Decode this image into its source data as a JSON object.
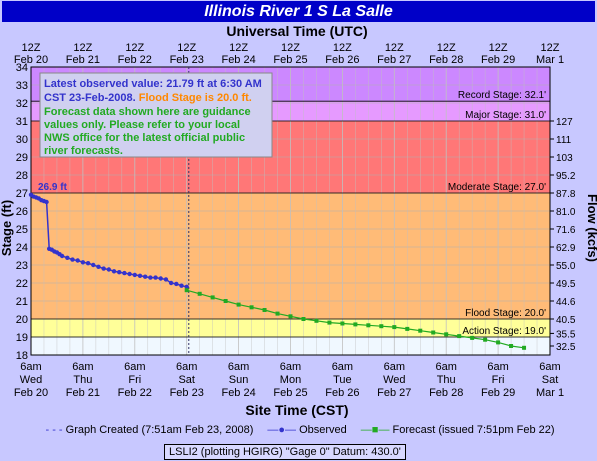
{
  "title": "Illinois River 1 S La Salle",
  "top_axis_title": "Universal Time (UTC)",
  "bottom_axis_title": "Site Time (CST)",
  "left_axis_title": "Stage (ft)",
  "right_axis_title": "Flow (kcfs)",
  "top_ticks": [
    {
      "time": "12Z",
      "date": "Feb 20"
    },
    {
      "time": "12Z",
      "date": "Feb 21"
    },
    {
      "time": "12Z",
      "date": "Feb 22"
    },
    {
      "time": "12Z",
      "date": "Feb 23"
    },
    {
      "time": "12Z",
      "date": "Feb 24"
    },
    {
      "time": "12Z",
      "date": "Feb 25"
    },
    {
      "time": "12Z",
      "date": "Feb 26"
    },
    {
      "time": "12Z",
      "date": "Feb 27"
    },
    {
      "time": "12Z",
      "date": "Feb 28"
    },
    {
      "time": "12Z",
      "date": "Feb 29"
    },
    {
      "time": "12Z",
      "date": "Mar 1"
    }
  ],
  "bottom_ticks": [
    {
      "time": "6am",
      "day": "Wed",
      "date": "Feb 20"
    },
    {
      "time": "6am",
      "day": "Thu",
      "date": "Feb 21"
    },
    {
      "time": "6am",
      "day": "Fri",
      "date": "Feb 22"
    },
    {
      "time": "6am",
      "day": "Sat",
      "date": "Feb 23"
    },
    {
      "time": "6am",
      "day": "Sun",
      "date": "Feb 24"
    },
    {
      "time": "6am",
      "day": "Mon",
      "date": "Feb 25"
    },
    {
      "time": "6am",
      "day": "Tue",
      "date": "Feb 26"
    },
    {
      "time": "6am",
      "day": "Wed",
      "date": "Feb 27"
    },
    {
      "time": "6am",
      "day": "Thu",
      "date": "Feb 28"
    },
    {
      "time": "6am",
      "day": "Fri",
      "date": "Feb 29"
    },
    {
      "time": "6am",
      "day": "Sat",
      "date": "Mar 1"
    }
  ],
  "info_box": {
    "line1": "Latest observed value: 21.79 ft at 6:30 AM",
    "line2a": "CST 23-Feb-2008. ",
    "line2b": "Flood Stage is 20.0 ft.",
    "line3": "Forecast data shown here are guidance",
    "line4": "values only. Please refer to your local",
    "line5": "NWS office for the latest official public",
    "line6": "river forecasts."
  },
  "stage_labels": {
    "record": "Record Stage: 32.1'",
    "major": "Major Stage: 31.0'",
    "moderate": "Moderate Stage: 27.0'",
    "flood": "Flood Stage: 20.0'",
    "action": "Action Stage: 19.0'"
  },
  "first_value_label": "26.9 ft",
  "legend": {
    "created": "Graph Created (7:51am Feb 23, 2008)",
    "observed": "Observed",
    "forecast": "Forecast (issued 7:51pm Feb 22)"
  },
  "datum_text": "LSLI2 (plotting HGIRG)  \"Gage 0\" Datum: 430.0'",
  "colors": {
    "record": "#cc88ff",
    "major": "#ff7777",
    "moderate": "#ffbb77",
    "flood": "#ffff99",
    "observed": "#3333cc",
    "forecast": "#22aa22",
    "title_bg": "#0000c8"
  },
  "chart_data": {
    "type": "line",
    "x_unit": "days since Feb 20 6am CST",
    "ylim": [
      18,
      34
    ],
    "y_ticks": [
      18,
      19,
      20,
      21,
      22,
      23,
      24,
      25,
      26,
      27,
      28,
      29,
      30,
      31,
      32,
      33,
      34
    ],
    "flow_ticks": [
      {
        "stage": 18.5,
        "label": "32.5"
      },
      {
        "stage": 19.2,
        "label": "35.5"
      },
      {
        "stage": 20.0,
        "label": "40.5"
      },
      {
        "stage": 21.0,
        "label": "44.6"
      },
      {
        "stage": 22.0,
        "label": "49.5"
      },
      {
        "stage": 23.0,
        "label": "55.0"
      },
      {
        "stage": 24.0,
        "label": "62.9"
      },
      {
        "stage": 25.0,
        "label": "71.6"
      },
      {
        "stage": 26.0,
        "label": "81.0"
      },
      {
        "stage": 27.0,
        "label": "87.8"
      },
      {
        "stage": 28.0,
        "label": "95.2"
      },
      {
        "stage": 29.0,
        "label": "103"
      },
      {
        "stage": 30.0,
        "label": "111"
      },
      {
        "stage": 31.0,
        "label": "127"
      }
    ],
    "thresholds": {
      "record": 32.1,
      "major": 31.0,
      "moderate": 27.0,
      "flood": 20.0,
      "action": 19.0
    },
    "created_x": 3.04,
    "observed": {
      "x": [
        0.0,
        0.05,
        0.1,
        0.15,
        0.2,
        0.25,
        0.3,
        0.35,
        0.4,
        0.45,
        0.5,
        0.55,
        0.6,
        0.7,
        0.8,
        0.9,
        1.0,
        1.1,
        1.2,
        1.3,
        1.4,
        1.5,
        1.6,
        1.7,
        1.8,
        1.9,
        2.0,
        2.1,
        2.2,
        2.3,
        2.4,
        2.5,
        2.6,
        2.7,
        2.8,
        2.9,
        3.0
      ],
      "y": [
        26.9,
        26.8,
        26.75,
        26.7,
        26.6,
        26.55,
        26.5,
        23.9,
        23.85,
        23.75,
        23.7,
        23.6,
        23.5,
        23.4,
        23.3,
        23.25,
        23.15,
        23.1,
        23.0,
        22.9,
        22.8,
        22.75,
        22.65,
        22.6,
        22.55,
        22.5,
        22.45,
        22.4,
        22.35,
        22.3,
        22.3,
        22.25,
        22.2,
        22.0,
        21.95,
        21.85,
        21.79
      ]
    },
    "forecast": {
      "x": [
        3.0,
        3.25,
        3.5,
        3.75,
        4.0,
        4.25,
        4.5,
        4.75,
        5.0,
        5.25,
        5.5,
        5.75,
        6.0,
        6.25,
        6.5,
        6.75,
        7.0,
        7.25,
        7.5,
        7.75,
        8.0,
        8.25,
        8.5,
        8.75,
        9.0,
        9.25,
        9.5
      ],
      "y": [
        21.6,
        21.4,
        21.2,
        21.0,
        20.8,
        20.65,
        20.5,
        20.3,
        20.15,
        20.0,
        19.9,
        19.8,
        19.75,
        19.7,
        19.65,
        19.6,
        19.55,
        19.45,
        19.35,
        19.25,
        19.15,
        19.05,
        18.95,
        18.85,
        18.7,
        18.5,
        18.4
      ]
    }
  }
}
